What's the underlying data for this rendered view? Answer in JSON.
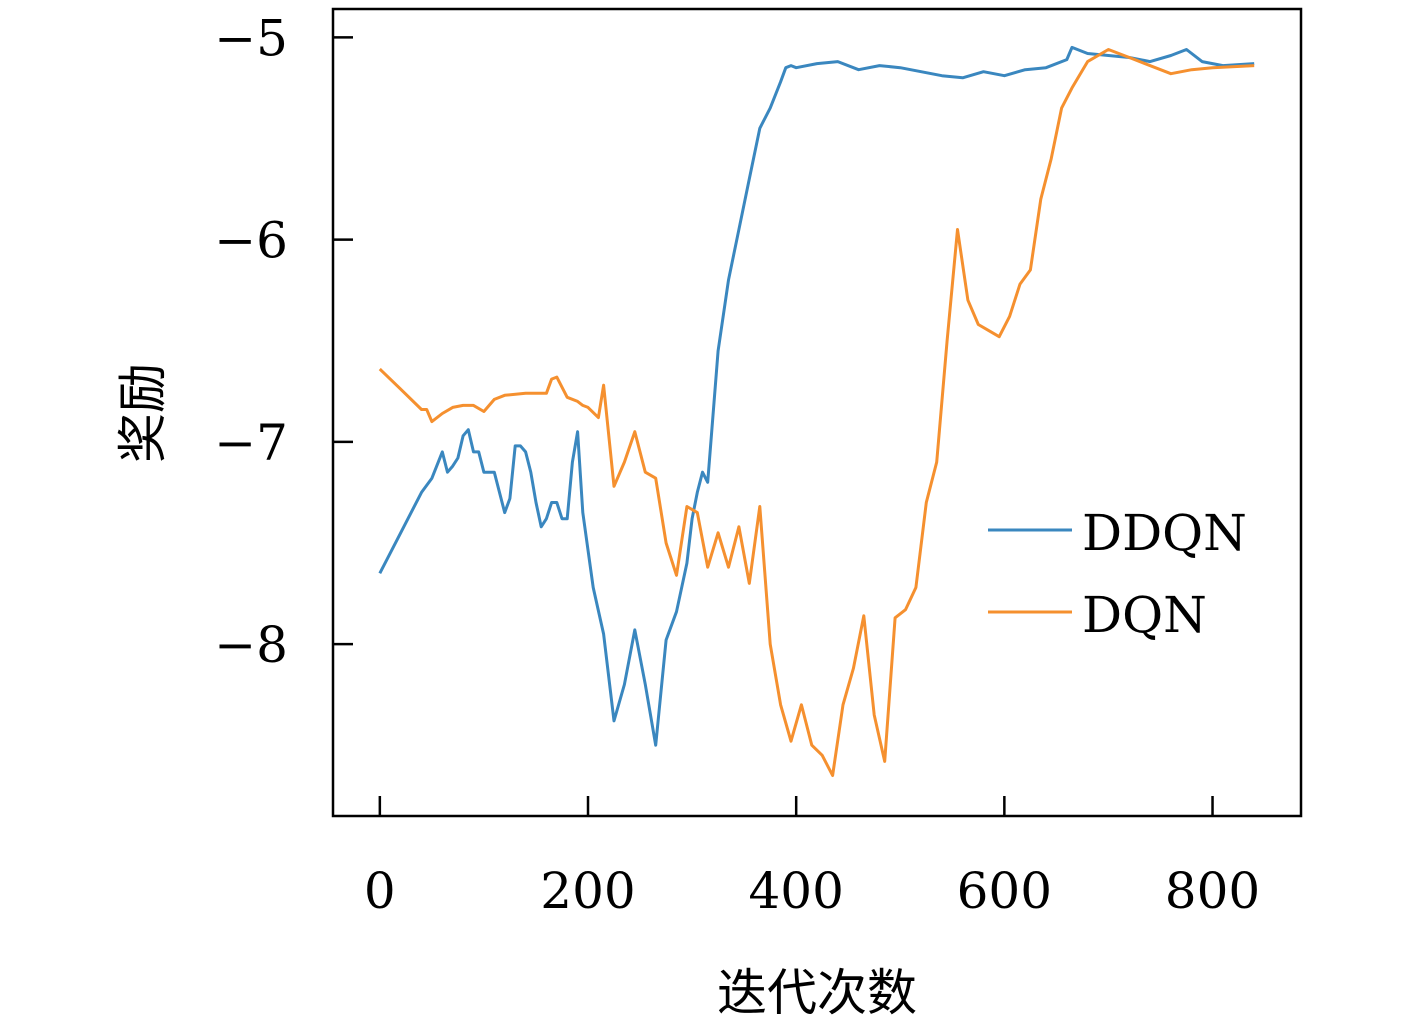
{
  "chart_data": {
    "type": "line",
    "title": "",
    "xlabel": "迭代次数",
    "ylabel": "奖励",
    "xlim": [
      -45,
      885
    ],
    "ylim": [
      -8.85,
      -4.86
    ],
    "xticks": [
      0,
      200,
      400,
      600,
      800
    ],
    "xtick_labels": [
      "0",
      "200",
      "400",
      "600",
      "800"
    ],
    "yticks": [
      -5,
      -6,
      -7,
      -8
    ],
    "ytick_labels": [
      "−5",
      "−6",
      "−7",
      "−8"
    ],
    "grid": false,
    "legend_position": "center-right",
    "series": [
      {
        "name": "DDQN",
        "color": "#3a87bf",
        "x": [
          0,
          20,
          40,
          50,
          60,
          65,
          70,
          75,
          80,
          85,
          90,
          95,
          100,
          110,
          120,
          125,
          130,
          135,
          140,
          145,
          150,
          155,
          160,
          165,
          170,
          175,
          180,
          185,
          190,
          195,
          205,
          215,
          225,
          235,
          245,
          255,
          265,
          275,
          285,
          295,
          300,
          305,
          310,
          315,
          325,
          335,
          345,
          355,
          365,
          375,
          385,
          390,
          395,
          400,
          420,
          440,
          460,
          480,
          500,
          520,
          540,
          560,
          580,
          600,
          620,
          640,
          660,
          665,
          680,
          700,
          720,
          740,
          760,
          775,
          790,
          810,
          840
        ],
        "y": [
          -7.65,
          -7.45,
          -7.25,
          -7.18,
          -7.05,
          -7.15,
          -7.12,
          -7.08,
          -6.97,
          -6.94,
          -7.05,
          -7.05,
          -7.15,
          -7.15,
          -7.35,
          -7.28,
          -7.02,
          -7.02,
          -7.05,
          -7.15,
          -7.3,
          -7.42,
          -7.38,
          -7.3,
          -7.3,
          -7.38,
          -7.38,
          -7.1,
          -6.95,
          -7.35,
          -7.72,
          -7.95,
          -8.38,
          -8.2,
          -7.93,
          -8.2,
          -8.5,
          -7.98,
          -7.84,
          -7.6,
          -7.38,
          -7.25,
          -7.15,
          -7.2,
          -6.55,
          -6.2,
          -5.95,
          -5.7,
          -5.45,
          -5.35,
          -5.22,
          -5.15,
          -5.14,
          -5.15,
          -5.13,
          -5.12,
          -5.16,
          -5.14,
          -5.15,
          -5.17,
          -5.19,
          -5.2,
          -5.17,
          -5.19,
          -5.16,
          -5.15,
          -5.11,
          -5.05,
          -5.08,
          -5.09,
          -5.1,
          -5.12,
          -5.09,
          -5.06,
          -5.12,
          -5.14,
          -5.13
        ]
      },
      {
        "name": "DQN",
        "color": "#f5902f",
        "x": [
          0,
          20,
          40,
          45,
          50,
          60,
          70,
          80,
          90,
          100,
          110,
          120,
          140,
          160,
          165,
          170,
          180,
          190,
          195,
          200,
          210,
          215,
          225,
          235,
          245,
          255,
          265,
          275,
          285,
          295,
          305,
          315,
          325,
          335,
          345,
          355,
          365,
          375,
          385,
          395,
          405,
          415,
          425,
          435,
          445,
          455,
          465,
          475,
          485,
          495,
          505,
          515,
          525,
          535,
          545,
          555,
          565,
          575,
          585,
          595,
          605,
          615,
          625,
          635,
          645,
          655,
          665,
          680,
          700,
          720,
          760,
          780,
          800,
          840
        ],
        "y": [
          -6.64,
          -6.74,
          -6.84,
          -6.84,
          -6.9,
          -6.86,
          -6.83,
          -6.82,
          -6.82,
          -6.85,
          -6.79,
          -6.77,
          -6.76,
          -6.76,
          -6.69,
          -6.68,
          -6.78,
          -6.8,
          -6.82,
          -6.83,
          -6.88,
          -6.72,
          -7.22,
          -7.1,
          -6.95,
          -7.15,
          -7.18,
          -7.5,
          -7.66,
          -7.32,
          -7.35,
          -7.62,
          -7.45,
          -7.62,
          -7.42,
          -7.7,
          -7.32,
          -8.0,
          -8.3,
          -8.48,
          -8.3,
          -8.5,
          -8.55,
          -8.65,
          -8.3,
          -8.12,
          -7.86,
          -8.35,
          -8.58,
          -7.87,
          -7.83,
          -7.72,
          -7.3,
          -7.1,
          -6.5,
          -5.95,
          -6.3,
          -6.42,
          -6.45,
          -6.48,
          -6.38,
          -6.22,
          -6.15,
          -5.8,
          -5.6,
          -5.35,
          -5.25,
          -5.12,
          -5.06,
          -5.1,
          -5.18,
          -5.16,
          -5.15,
          -5.14
        ]
      }
    ]
  }
}
